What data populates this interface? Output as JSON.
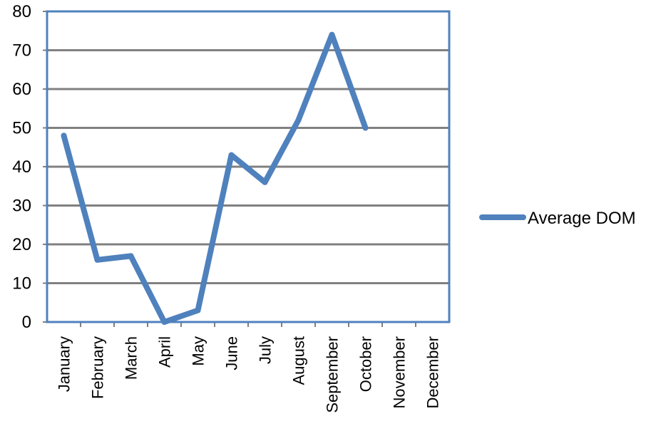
{
  "chart_data": {
    "type": "line",
    "categories": [
      "January",
      "February",
      "March",
      "April",
      "May",
      "June",
      "July",
      "August",
      "September",
      "October",
      "November",
      "December"
    ],
    "series": [
      {
        "name": "Average DOM",
        "values": [
          48,
          16,
          17,
          0,
          3,
          43,
          36,
          52,
          74,
          50,
          null,
          null
        ],
        "color": "#4F81BD"
      }
    ],
    "ylim": [
      0,
      80
    ],
    "yticks": [
      "0",
      "10",
      "20",
      "30",
      "40",
      "50",
      "60",
      "70",
      "80"
    ],
    "grid": true,
    "legend": "right",
    "colors": {
      "gridline": "#808080",
      "plot_border": "#4F81BD"
    }
  }
}
